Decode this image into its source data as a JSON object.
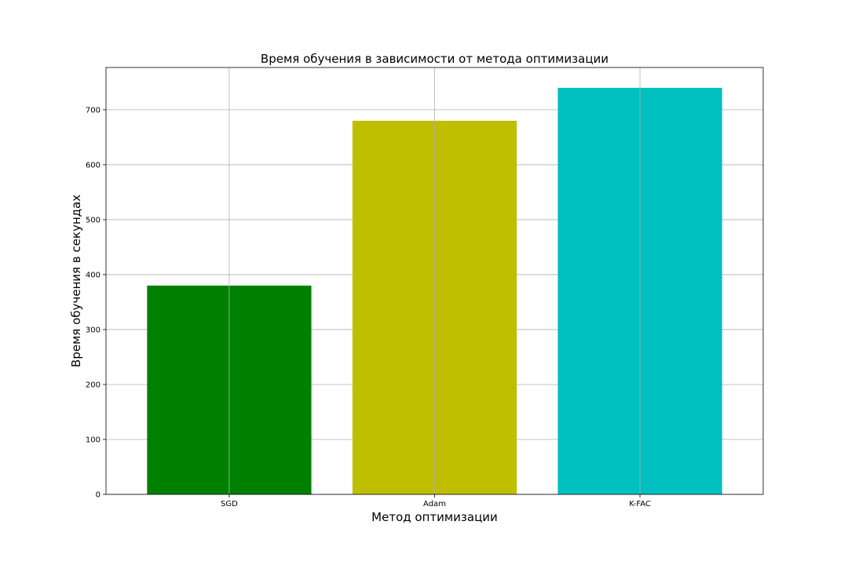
{
  "chart_data": {
    "type": "bar",
    "title": "Время обучения в зависимости от метода оптимизации",
    "xlabel": "Метод оптимизации",
    "ylabel": "Время обучения в секундах",
    "categories": [
      "SGD",
      "Adam",
      "K-FAC"
    ],
    "values": [
      380,
      680,
      740
    ],
    "colors": [
      "#008000",
      "#bfbf00",
      "#00bfbf"
    ],
    "ylim": [
      0,
      777
    ],
    "yticks": [
      0,
      100,
      200,
      300,
      400,
      500,
      600,
      700
    ],
    "grid": true
  }
}
